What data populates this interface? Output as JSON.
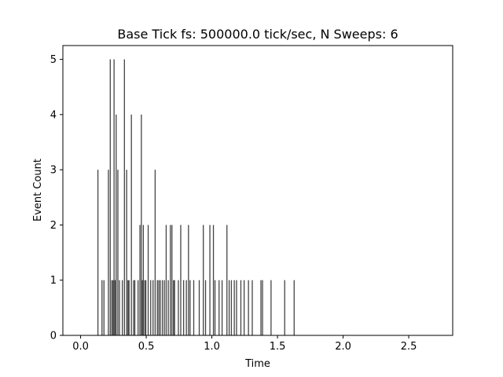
{
  "chart_data": {
    "type": "bar",
    "title": "Base Tick fs: 500000.0 tick/sec, N Sweeps: 6",
    "xlabel": "Time",
    "ylabel": "Event Count",
    "xlim": [
      -0.135,
      2.835
    ],
    "ylim": [
      0,
      5.25
    ],
    "xticks": [
      "0.0",
      "0.5",
      "1.0",
      "1.5",
      "2.0",
      "2.5"
    ],
    "xtick_values": [
      0.0,
      0.5,
      1.0,
      1.5,
      2.0,
      2.5
    ],
    "yticks": [
      "0",
      "1",
      "2",
      "3",
      "4",
      "5"
    ],
    "ytick_values": [
      0,
      1,
      2,
      3,
      4,
      5
    ],
    "grid": false,
    "bar_color": "#444444",
    "series": [
      {
        "x": [
          0.132,
          0.163,
          0.178,
          0.212,
          0.226,
          0.238,
          0.247,
          0.255,
          0.263,
          0.271,
          0.284,
          0.296,
          0.318,
          0.334,
          0.351,
          0.361,
          0.369,
          0.387,
          0.404,
          0.413,
          0.438,
          0.452,
          0.463,
          0.471,
          0.478,
          0.489,
          0.497,
          0.515,
          0.534,
          0.552,
          0.568,
          0.585,
          0.596,
          0.607,
          0.623,
          0.638,
          0.652,
          0.668,
          0.684,
          0.696,
          0.708,
          0.716,
          0.745,
          0.763,
          0.785,
          0.806,
          0.822,
          0.834,
          0.862,
          0.904,
          0.935,
          0.952,
          0.985,
          1.012,
          1.024,
          1.055,
          1.078,
          1.115,
          1.132,
          1.149,
          1.171,
          1.188,
          1.221,
          1.246,
          1.279,
          1.308,
          1.374,
          1.386,
          1.451,
          1.555,
          1.627
        ],
        "values": [
          3,
          1,
          1,
          3,
          5,
          1,
          1,
          5,
          1,
          4,
          3,
          1,
          1,
          5,
          3,
          1,
          1,
          4,
          1,
          1,
          1,
          2,
          4,
          1,
          2,
          1,
          1,
          2,
          1,
          1,
          3,
          1,
          1,
          1,
          1,
          1,
          2,
          1,
          2,
          2,
          1,
          1,
          1,
          2,
          1,
          1,
          2,
          1,
          1,
          1,
          2,
          1,
          2,
          2,
          1,
          1,
          1,
          2,
          1,
          1,
          1,
          1,
          1,
          1,
          1,
          1,
          1,
          1,
          1,
          1,
          1
        ]
      }
    ]
  }
}
